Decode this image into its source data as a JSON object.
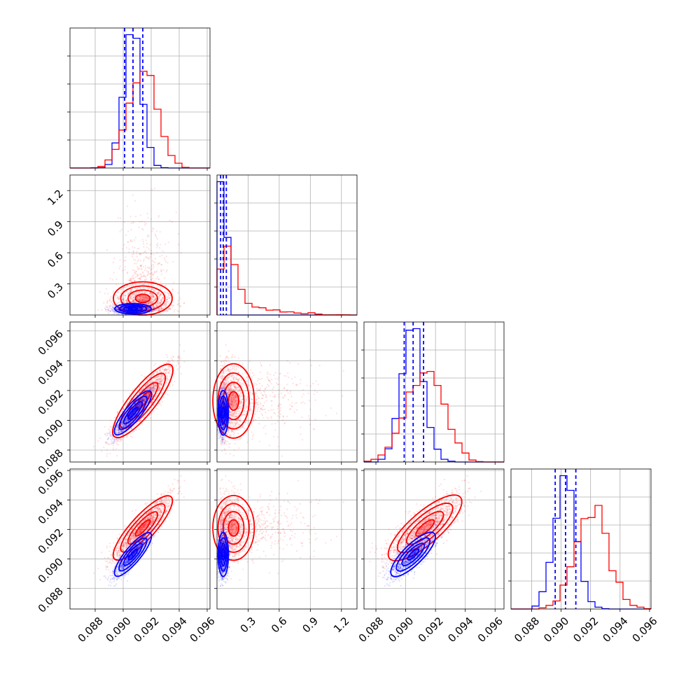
{
  "colors": {
    "series_a": "#0000ff",
    "series_b": "#ff0000",
    "grid": "#b0b0b0"
  },
  "chart_data": {
    "type": "corner",
    "grid": true,
    "series": [
      {
        "color": "#0000ff",
        "params": [
          {
            "mean": 0.0907,
            "sd": 0.00065,
            "quantiles": [
              0.0901,
              0.0907,
              0.0914
            ]
          },
          {
            "mean": 0.06,
            "sd": 0.025,
            "quantiles": [
              0.035,
              0.06,
              0.09
            ]
          },
          {
            "mean": 0.0905,
            "sd": 0.00075,
            "quantiles": [
              0.0899,
              0.0905,
              0.0912
            ]
          },
          {
            "mean": 0.0903,
            "sd": 0.00075,
            "quantiles": [
              0.0896,
              0.0903,
              0.091
            ]
          }
        ]
      },
      {
        "color": "#ff0000",
        "params": [
          {
            "mean": 0.0914,
            "sd": 0.00105
          },
          {
            "mean": 0.2,
            "sd": 0.2
          },
          {
            "mean": 0.0913,
            "sd": 0.00125
          },
          {
            "mean": 0.0921,
            "sd": 0.0011
          }
        ]
      }
    ],
    "ranges": [
      [
        0.0862,
        0.0962
      ],
      [
        0.0,
        1.35
      ],
      [
        0.0872,
        0.0966
      ],
      [
        0.0866,
        0.0961
      ]
    ],
    "bottom_axes": [
      [
        "0.088",
        "0.090",
        "0.092",
        "0.094",
        "0.096"
      ],
      [
        "0.3",
        "0.6",
        "0.9",
        "1.2"
      ],
      [
        "0.088",
        "0.090",
        "0.092",
        "0.094",
        "0.096"
      ],
      [
        "0.088",
        "0.090",
        "0.092",
        "0.094",
        "0.096"
      ]
    ],
    "left_axes": [
      [],
      [
        "0.3",
        "0.6",
        "0.9",
        "1.2"
      ],
      [
        "0.088",
        "0.090",
        "0.092",
        "0.094",
        "0.096"
      ],
      [
        "0.088",
        "0.090",
        "0.092",
        "0.094",
        "0.096"
      ]
    ]
  }
}
